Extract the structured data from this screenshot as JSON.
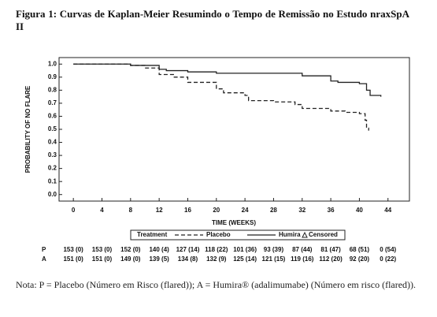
{
  "chart_data": {
    "type": "step-line",
    "title": "Figura 1: Curvas de Kaplan-Meier Resumindo o Tempo de Remissão no Estudo nraxSpA II",
    "x_label": "TIME (WEEKS)",
    "y_label": "PROBABILITY OF NO FLARE",
    "xlim": [
      -2,
      47
    ],
    "ylim": [
      -0.05,
      1.05
    ],
    "xticks": [
      0,
      4,
      8,
      12,
      16,
      20,
      24,
      28,
      32,
      36,
      40,
      44
    ],
    "yticks": [
      {
        "value": 0,
        "label": "0.0"
      },
      {
        "value": 0.1,
        "label": "0.1"
      },
      {
        "value": 0.2,
        "label": "0.2"
      },
      {
        "value": 0.3,
        "label": "0.3"
      },
      {
        "value": 0.4,
        "label": "0.4"
      },
      {
        "value": 0.5,
        "label": "0.5"
      },
      {
        "value": 0.6,
        "label": "0.6"
      },
      {
        "value": 0.7,
        "label": "0.7"
      },
      {
        "value": 0.8,
        "label": "0.8"
      },
      {
        "value": 0.9,
        "label": "0.9"
      },
      {
        "value": 1,
        "label": "1.0"
      }
    ],
    "legend_title": "Treatment",
    "censored_label": "Censored",
    "series": [
      {
        "name": "Placebo",
        "color": "#222222",
        "dash": true,
        "x": [
          0,
          8,
          10,
          12,
          14,
          16,
          20,
          21,
          24,
          24.5,
          28,
          31,
          32,
          36,
          38,
          40,
          40.8,
          41,
          41.3
        ],
        "values": [
          1,
          0.99,
          0.97,
          0.92,
          0.9,
          0.86,
          0.81,
          0.78,
          0.76,
          0.72,
          0.71,
          0.69,
          0.66,
          0.64,
          0.63,
          0.62,
          0.57,
          0.51,
          0.49
        ]
      },
      {
        "name": "Humira",
        "color": "#222222",
        "dash": false,
        "x": [
          0,
          8,
          12,
          13,
          16,
          20,
          32,
          36,
          37,
          40,
          41,
          41.5,
          43
        ],
        "values": [
          1,
          0.99,
          0.96,
          0.95,
          0.94,
          0.93,
          0.91,
          0.87,
          0.86,
          0.85,
          0.8,
          0.76,
          0.75
        ]
      }
    ],
    "at_risk": [
      {
        "label": "P",
        "values": [
          "153 (0)",
          "153 (0)",
          "152 (0)",
          "140 (4)",
          "127 (14)",
          "118 (22)",
          "101 (36)",
          "93 (39)",
          "87 (44)",
          "81 (47)",
          "68 (51)",
          "0 (54)"
        ]
      },
      {
        "label": "A",
        "values": [
          "151 (0)",
          "151 (0)",
          "149 (0)",
          "139 (5)",
          "134 (8)",
          "132 (9)",
          "125 (14)",
          "121 (15)",
          "119 (16)",
          "112 (20)",
          "92 (20)",
          "0 (22)"
        ]
      }
    ]
  },
  "note": "Nota: P = Placebo (Número em Risco (flared)); A = Humira® (adalimumabe) (Número em risco (flared))."
}
